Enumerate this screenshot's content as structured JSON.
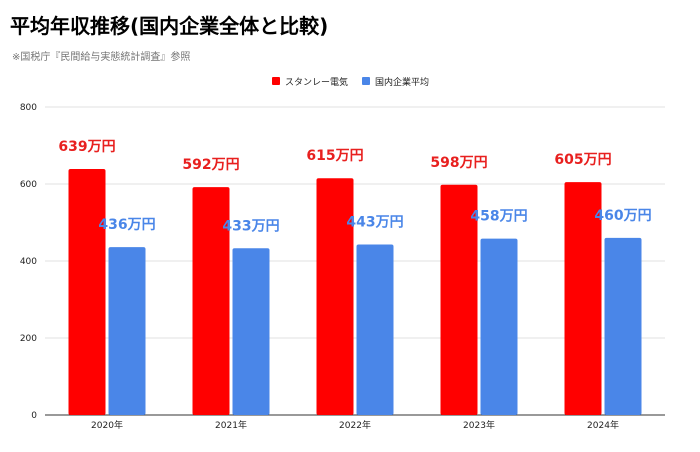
{
  "chart_data": {
    "type": "bar",
    "title": "平均年収推移(国内企業全体と比較)",
    "subtitle": "※国税庁『民間給与実態統計調査』参照",
    "categories": [
      "2020年",
      "2021年",
      "2022年",
      "2023年",
      "2024年"
    ],
    "series": [
      {
        "name": "スタンレー電気",
        "color": "#ff0000",
        "values": [
          639,
          592,
          615,
          598,
          605
        ],
        "labels": [
          "639万円",
          "592万円",
          "615万円",
          "598万円",
          "605万円"
        ],
        "label_color": "#e8201f"
      },
      {
        "name": "国内企業平均",
        "color": "#4a86e8",
        "values": [
          436,
          433,
          443,
          458,
          460
        ],
        "labels": [
          "436万円",
          "433万円",
          "443万円",
          "458万円",
          "460万円"
        ],
        "label_color": "#4a86e8"
      }
    ],
    "yticks": [
      "0",
      "200",
      "400",
      "600",
      "800"
    ],
    "ylim": [
      0,
      800
    ],
    "legend_position": "top-right",
    "grid": true
  }
}
